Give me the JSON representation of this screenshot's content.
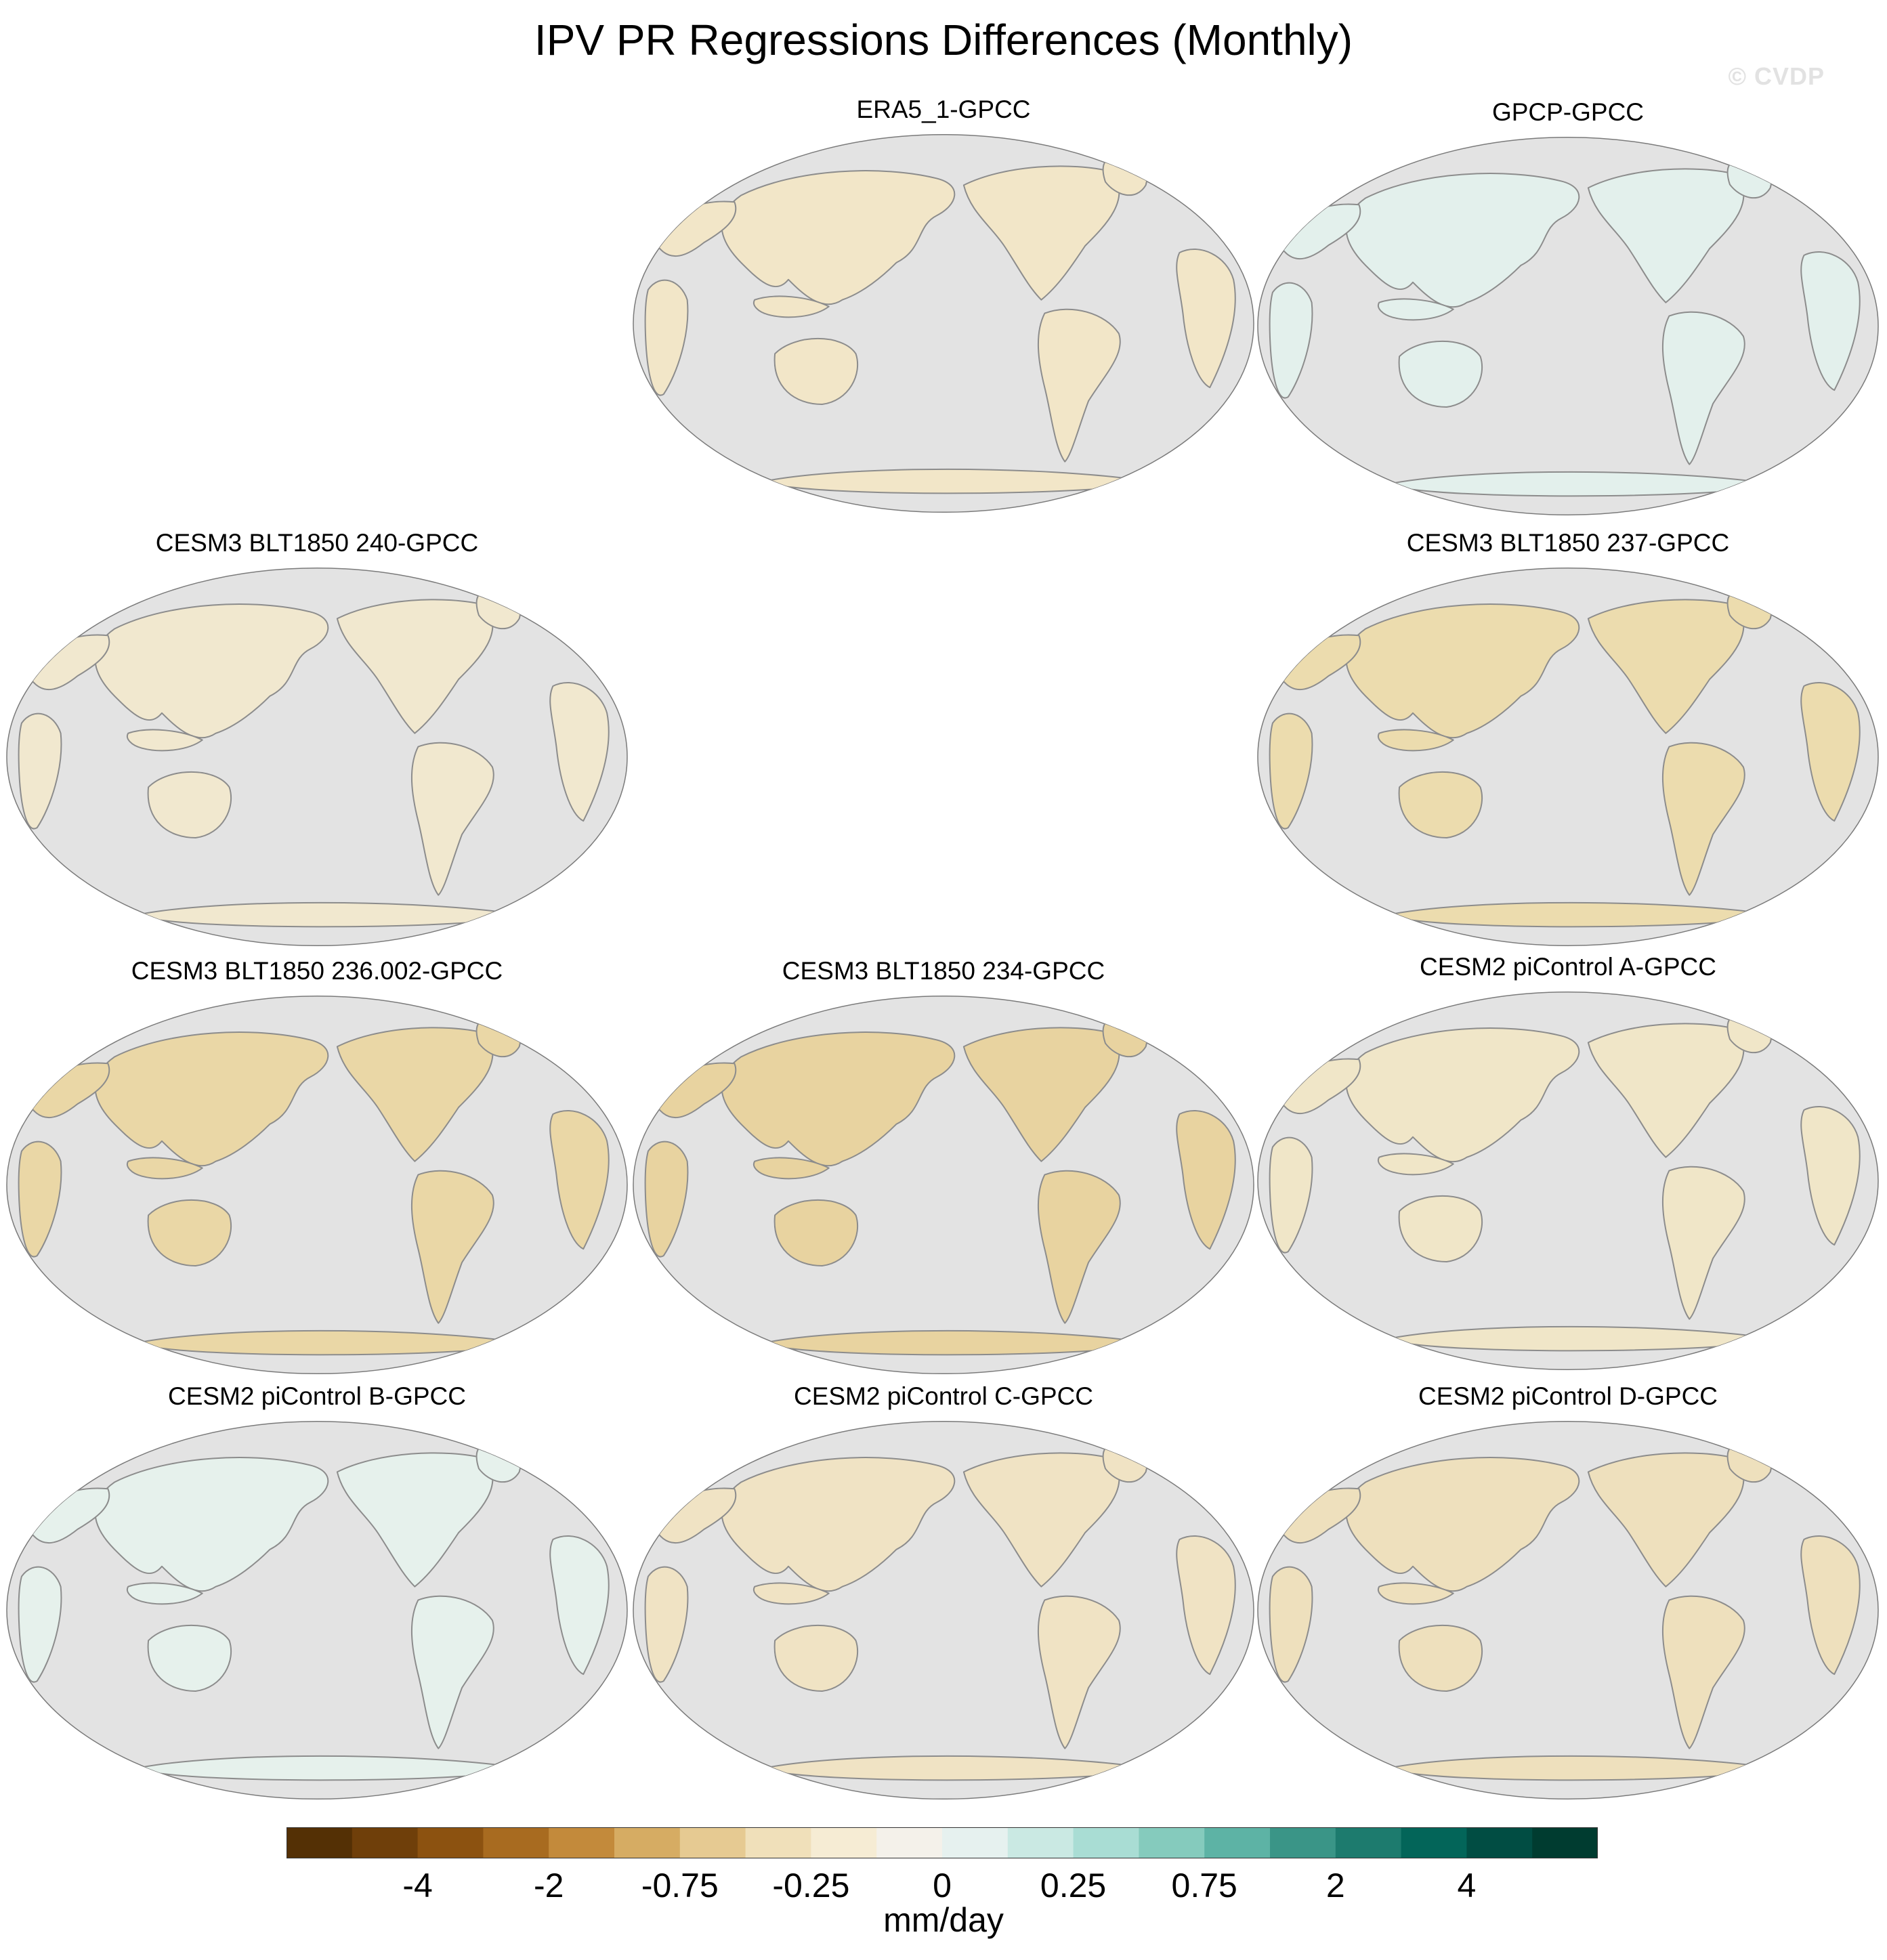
{
  "title": "IPV PR Regressions Differences (Monthly)",
  "watermark": "© CVDP",
  "panels": [
    {
      "title": "ERA5_1-GPCC",
      "tint": "#f2e6c8"
    },
    {
      "title": "GPCP-GPCC",
      "tint": "#e3f0ec"
    },
    {
      "title": "CESM3 BLT1850 240-GPCC",
      "tint": "#f1e8cf"
    },
    {
      "title": "CESM3 BLT1850 237-GPCC",
      "tint": "#ecdcae"
    },
    {
      "title": "CESM3 BLT1850 236.002-GPCC",
      "tint": "#ead7a6"
    },
    {
      "title": "CESM3 BLT1850 234-GPCC",
      "tint": "#e8d3a0"
    },
    {
      "title": "CESM2 piControl A-GPCC",
      "tint": "#f0e6c8"
    },
    {
      "title": "CESM2 piControl B-GPCC",
      "tint": "#e6f1ec"
    },
    {
      "title": "CESM2 piControl C-GPCC",
      "tint": "#f0e3c4"
    },
    {
      "title": "CESM2 piControl D-GPCC",
      "tint": "#eee0bd"
    }
  ],
  "colorbar": {
    "units": "mm/day",
    "colors": [
      "#543005",
      "#6f3f0a",
      "#8c5210",
      "#a86b20",
      "#c38a3b",
      "#d6ac63",
      "#e6ca92",
      "#f0e0ba",
      "#f6ecd4",
      "#f4f1ea",
      "#e6f1ef",
      "#cae9e3",
      "#a9ddd4",
      "#85cbbd",
      "#5db3a5",
      "#3a9587",
      "#1d7b6e",
      "#036559",
      "#014d43",
      "#003c30"
    ],
    "tick_labels": [
      "-4",
      "-2",
      "-0.75",
      "-0.25",
      "0",
      "0.25",
      "0.75",
      "2",
      "4"
    ]
  }
}
